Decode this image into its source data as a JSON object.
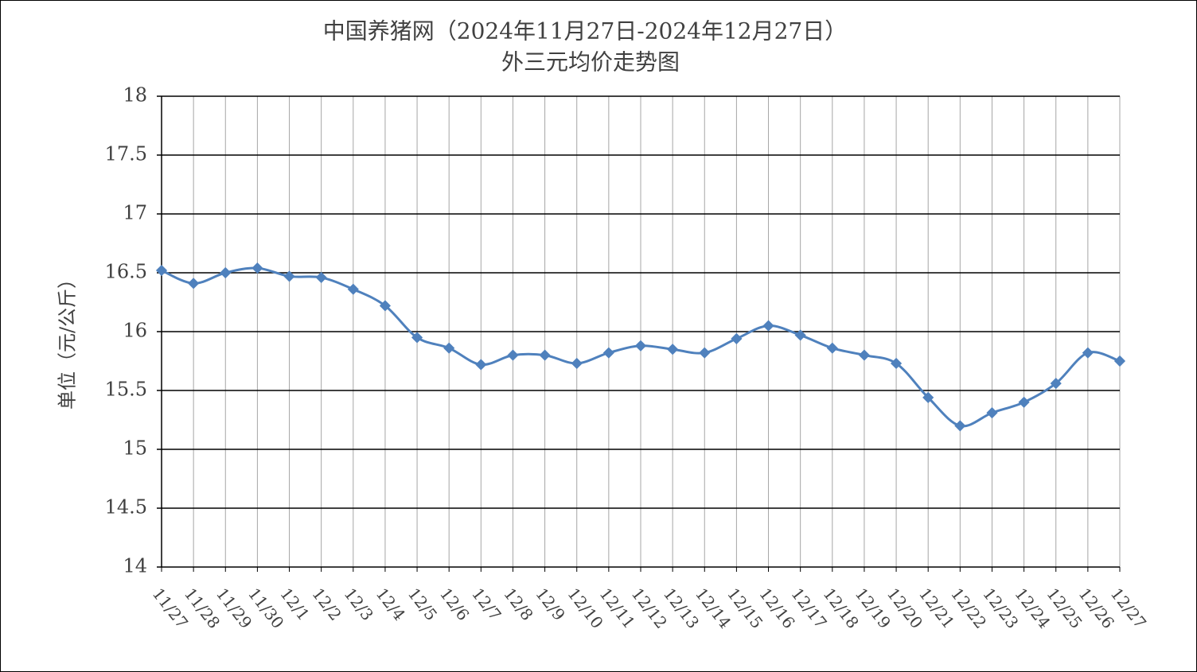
{
  "chart_data": {
    "type": "line",
    "title": "中国养猪网（2024年11月27日-2024年12月27日）",
    "subtitle": "外三元均价走势图",
    "y_label": "单位（元/公斤）",
    "categories": [
      "11/27",
      "11/28",
      "11/29",
      "11/30",
      "12/1",
      "12/2",
      "12/3",
      "12/4",
      "12/5",
      "12/6",
      "12/7",
      "12/8",
      "12/9",
      "12/10",
      "12/11",
      "12/12",
      "12/13",
      "12/14",
      "12/15",
      "12/16",
      "12/17",
      "12/18",
      "12/19",
      "12/20",
      "12/21",
      "12/22",
      "12/23",
      "12/24",
      "12/25",
      "12/26",
      "12/27"
    ],
    "series": [
      {
        "color": "#4f81bd",
        "values": [
          16.52,
          16.41,
          16.5,
          16.54,
          16.47,
          16.46,
          16.36,
          16.22,
          15.95,
          15.86,
          15.72,
          15.8,
          15.8,
          15.73,
          15.82,
          15.88,
          15.85,
          15.82,
          15.94,
          16.05,
          15.97,
          15.86,
          15.8,
          15.73,
          15.44,
          15.2,
          15.31,
          15.4,
          15.56,
          15.82,
          15.75
        ]
      }
    ],
    "ylim": [
      14,
      18
    ],
    "yticks": [
      14,
      14.5,
      15,
      15.5,
      16,
      16.5,
      17,
      17.5,
      18
    ],
    "grid": true
  }
}
